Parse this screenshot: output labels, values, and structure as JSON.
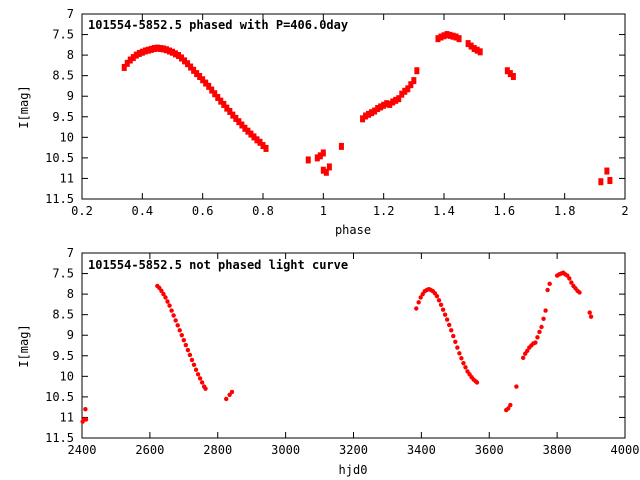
{
  "chart_data": [
    {
      "type": "scatter",
      "title": "101554-5852.5 phased with P=406.0day",
      "xlabel": "phase",
      "ylabel": "I[mag]",
      "xlim": [
        0.2,
        2.0
      ],
      "ylim": [
        7.0,
        11.5
      ],
      "y_inverted": true,
      "x_ticks": [
        "0.2",
        "0.4",
        "0.6",
        "0.8",
        "1",
        "1.2",
        "1.4",
        "1.6",
        "1.8",
        "2"
      ],
      "y_ticks": [
        "7",
        "7.5",
        "8",
        "8.5",
        "9",
        "9.5",
        "10",
        "10.5",
        "11",
        "11.5"
      ],
      "grid": false,
      "marker_color": "#ff0000",
      "series": [
        {
          "x": [
            0.34,
            0.35,
            0.36,
            0.37,
            0.38,
            0.39,
            0.4,
            0.41,
            0.42,
            0.43,
            0.44,
            0.45,
            0.46,
            0.47,
            0.48,
            0.49,
            0.5,
            0.51,
            0.52,
            0.53,
            0.54,
            0.55,
            0.56,
            0.57,
            0.58,
            0.59,
            0.6,
            0.61,
            0.62,
            0.63,
            0.64,
            0.65,
            0.66,
            0.67,
            0.68,
            0.69,
            0.7,
            0.71,
            0.72,
            0.73,
            0.74,
            0.75,
            0.76,
            0.77,
            0.78,
            0.79,
            0.8,
            0.81,
            0.95,
            0.98,
            0.99,
            1.0,
            1.0,
            1.01,
            1.02,
            1.06,
            1.13,
            1.14,
            1.15,
            1.16,
            1.17,
            1.18,
            1.19,
            1.2,
            1.21,
            1.22,
            1.23,
            1.24,
            1.25,
            1.26,
            1.27,
            1.28,
            1.29,
            1.3,
            1.31,
            1.38,
            1.39,
            1.4,
            1.41,
            1.42,
            1.43,
            1.44,
            1.45,
            1.48,
            1.49,
            1.5,
            1.51,
            1.52,
            1.61,
            1.62,
            1.63,
            1.92,
            1.94,
            1.95
          ],
          "y": [
            8.3,
            8.2,
            8.12,
            8.06,
            8.0,
            7.96,
            7.93,
            7.9,
            7.88,
            7.86,
            7.84,
            7.83,
            7.84,
            7.85,
            7.87,
            7.9,
            7.93,
            7.97,
            8.01,
            8.07,
            8.14,
            8.21,
            8.29,
            8.37,
            8.45,
            8.52,
            8.6,
            8.68,
            8.76,
            8.85,
            8.94,
            9.03,
            9.12,
            9.2,
            9.29,
            9.37,
            9.46,
            9.54,
            9.62,
            9.7,
            9.78,
            9.85,
            9.92,
            9.99,
            10.06,
            10.12,
            10.2,
            10.27,
            10.55,
            10.5,
            10.45,
            10.38,
            10.8,
            10.85,
            10.72,
            10.22,
            9.55,
            9.48,
            9.44,
            9.4,
            9.36,
            9.3,
            9.26,
            9.22,
            9.18,
            9.2,
            9.14,
            9.1,
            9.06,
            8.95,
            8.88,
            8.82,
            8.72,
            8.62,
            8.38,
            7.6,
            7.56,
            7.53,
            7.5,
            7.52,
            7.54,
            7.56,
            7.6,
            7.72,
            7.78,
            7.84,
            7.88,
            7.92,
            8.38,
            8.45,
            8.52,
            11.08,
            10.82,
            11.05
          ]
        }
      ]
    },
    {
      "type": "scatter",
      "title": "101554-5852.5 not phased light curve",
      "xlabel": "hjd0",
      "ylabel": "I[mag]",
      "xlim": [
        2400,
        4000
      ],
      "ylim": [
        7.0,
        11.5
      ],
      "y_inverted": true,
      "x_ticks": [
        "2400",
        "2600",
        "2800",
        "3000",
        "3200",
        "3400",
        "3600",
        "3800",
        "4000"
      ],
      "y_ticks": [
        "7",
        "7.5",
        "8",
        "8.5",
        "9",
        "9.5",
        "10",
        "10.5",
        "11",
        "11.5"
      ],
      "grid": false,
      "marker_color": "#ff0000",
      "series": [
        {
          "x": [
            2402,
            2405,
            2410,
            2412,
            2622,
            2628,
            2634,
            2640,
            2646,
            2652,
            2658,
            2664,
            2670,
            2676,
            2682,
            2688,
            2694,
            2700,
            2706,
            2712,
            2718,
            2724,
            2730,
            2736,
            2742,
            2748,
            2754,
            2760,
            2764,
            2825,
            2835,
            2842,
            3385,
            3392,
            3398,
            3404,
            3410,
            3416,
            3422,
            3428,
            3434,
            3440,
            3446,
            3452,
            3458,
            3464,
            3470,
            3476,
            3482,
            3488,
            3494,
            3500,
            3506,
            3512,
            3518,
            3524,
            3530,
            3536,
            3542,
            3548,
            3554,
            3560,
            3564,
            3650,
            3656,
            3662,
            3680,
            3700,
            3706,
            3712,
            3718,
            3724,
            3730,
            3736,
            3742,
            3748,
            3754,
            3760,
            3766,
            3772,
            3778,
            3800,
            3806,
            3812,
            3818,
            3824,
            3830,
            3836,
            3842,
            3848,
            3854,
            3860,
            3866,
            3896,
            3900
          ],
          "y": [
            11.1,
            11.05,
            10.8,
            11.05,
            7.8,
            7.85,
            7.92,
            8.0,
            8.08,
            8.18,
            8.28,
            8.4,
            8.52,
            8.64,
            8.76,
            8.88,
            9.0,
            9.12,
            9.24,
            9.36,
            9.48,
            9.6,
            9.72,
            9.84,
            9.95,
            10.05,
            10.15,
            10.25,
            10.3,
            10.55,
            10.45,
            10.38,
            8.35,
            8.2,
            8.08,
            8.0,
            7.93,
            7.9,
            7.88,
            7.9,
            7.93,
            7.98,
            8.05,
            8.15,
            8.26,
            8.38,
            8.5,
            8.62,
            8.75,
            8.88,
            9.02,
            9.16,
            9.3,
            9.44,
            9.56,
            9.68,
            9.78,
            9.88,
            9.95,
            10.02,
            10.08,
            10.12,
            10.15,
            10.82,
            10.78,
            10.7,
            10.25,
            9.55,
            9.45,
            9.38,
            9.3,
            9.25,
            9.2,
            9.18,
            9.05,
            8.92,
            8.8,
            8.6,
            8.4,
            7.9,
            7.75,
            7.55,
            7.52,
            7.5,
            7.48,
            7.52,
            7.55,
            7.62,
            7.72,
            7.8,
            7.86,
            7.92,
            7.96,
            8.45,
            8.55
          ]
        }
      ]
    }
  ]
}
